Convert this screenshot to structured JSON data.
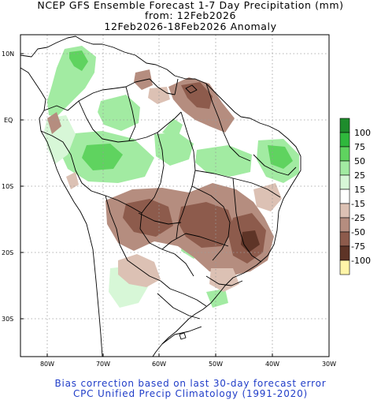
{
  "header": {
    "line1": "NCEP GFS Ensemble Forecast 1-7 Day Precipitation (mm)",
    "line2": "from: 12Feb2026",
    "line3": "12Feb2026-18Feb2026 Anomaly"
  },
  "footer": {
    "line1": "Bias correction based on last 30-day forecast error",
    "line2": "CPC Unified Precip Climatology (1991-2020)"
  },
  "map": {
    "lat_labels": [
      "10N",
      "EQ",
      "10S",
      "20S",
      "30S"
    ],
    "lon_labels": [
      "80W",
      "70W",
      "60W",
      "50W",
      "40W",
      "30W"
    ]
  },
  "legend": {
    "labels": [
      "100",
      "75",
      "50",
      "25",
      "15",
      "-15",
      "-25",
      "-50",
      "-75",
      "-100"
    ],
    "colors": {
      "gt100": "#1e8c2c",
      "75_100": "#2fb83c",
      "50_75": "#5fd35f",
      "25_50": "#a2eba2",
      "15_25": "#d7f7d7",
      "neutral": "#ffffff",
      "m15_m25": "#dcc1b4",
      "m25_m50": "#b58d7f",
      "m50_m75": "#8d5b4c",
      "m75_m100": "#5e3427",
      "lt_m100": "#fff5a8"
    }
  }
}
